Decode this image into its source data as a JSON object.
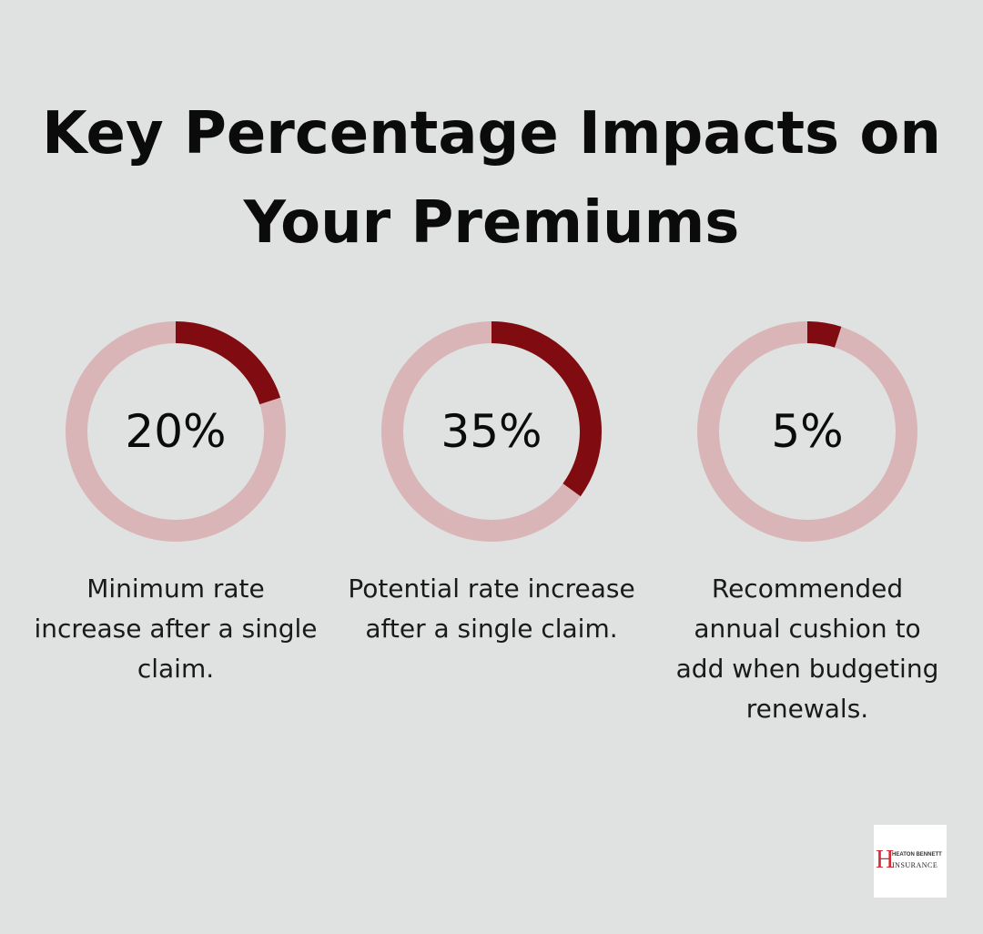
{
  "title": "Key Percentage Impacts on Your Premiums",
  "colors": {
    "background": "#e0e2e1",
    "filled": "#800b10",
    "track": "#d9b5b7"
  },
  "chart_data": [
    {
      "type": "pie",
      "style": "donut",
      "value": 20,
      "max": 100,
      "label": "20%",
      "description": "Minimum rate increase after a single claim."
    },
    {
      "type": "pie",
      "style": "donut",
      "value": 35,
      "max": 100,
      "label": "35%",
      "description": "Potential rate increase after a single claim."
    },
    {
      "type": "pie",
      "style": "donut",
      "value": 5,
      "max": 100,
      "label": "5%",
      "description": "Recommended annual cushion to add when budgeting renewals."
    }
  ],
  "logo": {
    "letter": "H",
    "line1": "HEATON BENNETT",
    "line2": "INSURANCE"
  }
}
